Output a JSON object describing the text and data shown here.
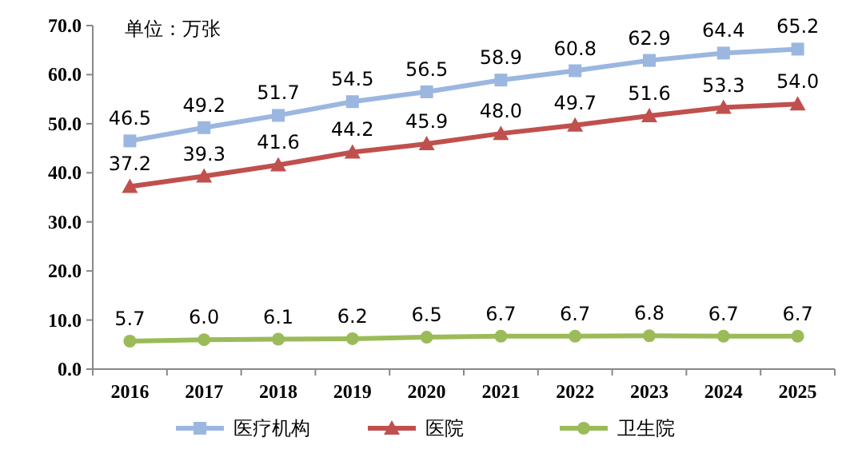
{
  "chart_data": {
    "type": "line",
    "categories": [
      "2016",
      "2017",
      "2018",
      "2019",
      "2020",
      "2021",
      "2022",
      "2023",
      "2024",
      "2025"
    ],
    "series": [
      {
        "name": "医疗机构",
        "color": "#9bb7e0",
        "marker": "square",
        "values": [
          46.5,
          49.2,
          51.7,
          54.5,
          56.5,
          58.9,
          60.8,
          62.9,
          64.4,
          65.2
        ],
        "value_labels": [
          "46.5",
          "49.2",
          "51.7",
          "54.5",
          "56.5",
          "58.9",
          "60.8",
          "62.9",
          "64.4",
          "65.2"
        ]
      },
      {
        "name": "医院",
        "color": "#c0504d",
        "marker": "triangle",
        "values": [
          37.2,
          39.3,
          41.6,
          44.2,
          45.9,
          48.0,
          49.7,
          51.6,
          53.3,
          54.0
        ],
        "value_labels": [
          "37.2",
          "39.3",
          "41.6",
          "44.2",
          "45.9",
          "48.0",
          "49.7",
          "51.6",
          "53.3",
          "54.0"
        ]
      },
      {
        "name": "卫生院",
        "color": "#9bbb59",
        "marker": "circle",
        "values": [
          5.7,
          6.0,
          6.1,
          6.2,
          6.5,
          6.7,
          6.7,
          6.8,
          6.7,
          6.7
        ],
        "value_labels": [
          "5.7",
          "6.0",
          "6.1",
          "6.2",
          "6.5",
          "6.7",
          "6.7",
          "6.8",
          "6.7",
          "6.7"
        ]
      }
    ],
    "ylim": [
      0,
      70
    ],
    "yticks": [
      {
        "value": 0,
        "label": "0.0"
      },
      {
        "value": 10,
        "label": "10.0"
      },
      {
        "value": 20,
        "label": "20.0"
      },
      {
        "value": 30,
        "label": "30.0"
      },
      {
        "value": 40,
        "label": "40.0"
      },
      {
        "value": 50,
        "label": "50.0"
      },
      {
        "value": 60,
        "label": "60.0"
      },
      {
        "value": 70,
        "label": "70.0"
      }
    ],
    "annotations": [
      "单位：万张"
    ],
    "legend": "bottom",
    "grid": false,
    "line_style": "solid"
  }
}
